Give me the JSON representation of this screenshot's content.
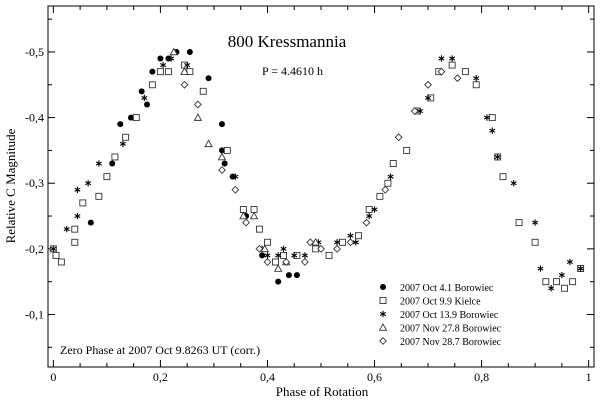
{
  "chart_data": {
    "type": "scatter",
    "title": "800 Kressmannia",
    "period_label": "P = 4.4610 h",
    "xlabel": "Phase of Rotation",
    "ylabel": "Relative C Magnitude",
    "xlim": [
      -0.01,
      1.01
    ],
    "ylim": [
      -0.57,
      -0.02
    ],
    "y_reversed": true,
    "x_ticks": [
      0,
      0.2,
      0.4,
      0.6,
      0.8,
      1
    ],
    "x_tick_labels": [
      "0",
      "0,2",
      "0,4",
      "0,6",
      "0,8",
      "1"
    ],
    "y_ticks": [
      -0.1,
      -0.2,
      -0.3,
      -0.4,
      -0.5
    ],
    "y_tick_labels": [
      "-0,1",
      "-0,2",
      "-0,3",
      "-0,4",
      "-0,5"
    ],
    "annotation": "Zero Phase at 2007 Oct 9.8263 UT (corr.)",
    "legend_position": "bottom-right",
    "series": [
      {
        "name": "2007 Oct 4.1 Borowiec",
        "marker": "filled-circle",
        "points": [
          [
            0.07,
            -0.24
          ],
          [
            0.1,
            -0.31
          ],
          [
            0.11,
            -0.33
          ],
          [
            0.125,
            -0.39
          ],
          [
            0.145,
            -0.4
          ],
          [
            0.165,
            -0.44
          ],
          [
            0.175,
            -0.42
          ],
          [
            0.185,
            -0.47
          ],
          [
            0.2,
            -0.49
          ],
          [
            0.215,
            -0.49
          ],
          [
            0.23,
            -0.5
          ],
          [
            0.255,
            -0.5
          ],
          [
            0.29,
            -0.46
          ],
          [
            0.315,
            -0.39
          ],
          [
            0.315,
            -0.35
          ],
          [
            0.32,
            -0.33
          ],
          [
            0.335,
            -0.31
          ],
          [
            0.36,
            -0.25
          ],
          [
            0.39,
            -0.19
          ],
          [
            0.42,
            -0.15
          ],
          [
            0.44,
            -0.16
          ],
          [
            0.455,
            -0.16
          ]
        ]
      },
      {
        "name": "2007 Oct 9.9 Kielce",
        "marker": "open-square",
        "points": [
          [
            0.0,
            -0.2
          ],
          [
            0.005,
            -0.19
          ],
          [
            0.015,
            -0.18
          ],
          [
            0.04,
            -0.21
          ],
          [
            0.04,
            -0.23
          ],
          [
            0.055,
            -0.27
          ],
          [
            0.085,
            -0.28
          ],
          [
            0.1,
            -0.31
          ],
          [
            0.115,
            -0.34
          ],
          [
            0.135,
            -0.37
          ],
          [
            0.155,
            -0.4
          ],
          [
            0.185,
            -0.45
          ],
          [
            0.2,
            -0.47
          ],
          [
            0.215,
            -0.47
          ],
          [
            0.245,
            -0.48
          ],
          [
            0.255,
            -0.47
          ],
          [
            0.28,
            -0.44
          ],
          [
            0.325,
            -0.35
          ],
          [
            0.355,
            -0.26
          ],
          [
            0.375,
            -0.26
          ],
          [
            0.385,
            -0.23
          ],
          [
            0.4,
            -0.21
          ],
          [
            0.415,
            -0.18
          ],
          [
            0.43,
            -0.19
          ],
          [
            0.455,
            -0.19
          ],
          [
            0.49,
            -0.2
          ],
          [
            0.515,
            -0.19
          ],
          [
            0.54,
            -0.21
          ],
          [
            0.57,
            -0.22
          ],
          [
            0.59,
            -0.26
          ],
          [
            0.61,
            -0.28
          ],
          [
            0.625,
            -0.3
          ],
          [
            0.635,
            -0.33
          ],
          [
            0.66,
            -0.35
          ],
          [
            0.68,
            -0.41
          ],
          [
            0.705,
            -0.43
          ],
          [
            0.72,
            -0.47
          ],
          [
            0.745,
            -0.48
          ],
          [
            0.77,
            -0.47
          ],
          [
            0.79,
            -0.45
          ],
          [
            0.82,
            -0.4
          ],
          [
            0.83,
            -0.34
          ],
          [
            0.84,
            -0.31
          ],
          [
            0.87,
            -0.24
          ],
          [
            0.9,
            -0.21
          ],
          [
            0.92,
            -0.15
          ],
          [
            0.94,
            -0.15
          ],
          [
            0.955,
            -0.14
          ],
          [
            0.97,
            -0.15
          ],
          [
            0.985,
            -0.17
          ]
        ]
      },
      {
        "name": "2007 Oct 13.9 Borowiec",
        "marker": "asterisk",
        "points": [
          [
            0.0,
            -0.2
          ],
          [
            0.025,
            -0.23
          ],
          [
            0.045,
            -0.25
          ],
          [
            0.045,
            -0.29
          ],
          [
            0.065,
            -0.3
          ],
          [
            0.085,
            -0.33
          ],
          [
            0.13,
            -0.36
          ],
          [
            0.17,
            -0.43
          ],
          [
            0.205,
            -0.48
          ],
          [
            0.22,
            -0.49
          ],
          [
            0.25,
            -0.48
          ],
          [
            0.34,
            -0.31
          ],
          [
            0.39,
            -0.2
          ],
          [
            0.4,
            -0.19
          ],
          [
            0.42,
            -0.19
          ],
          [
            0.43,
            -0.2
          ],
          [
            0.45,
            -0.19
          ],
          [
            0.47,
            -0.19
          ],
          [
            0.495,
            -0.21
          ],
          [
            0.53,
            -0.21
          ],
          [
            0.555,
            -0.22
          ],
          [
            0.565,
            -0.21
          ],
          [
            0.59,
            -0.25
          ],
          [
            0.6,
            -0.26
          ],
          [
            0.63,
            -0.31
          ],
          [
            0.685,
            -0.41
          ],
          [
            0.7,
            -0.43
          ],
          [
            0.725,
            -0.49
          ],
          [
            0.745,
            -0.49
          ],
          [
            0.79,
            -0.46
          ],
          [
            0.81,
            -0.4
          ],
          [
            0.82,
            -0.38
          ],
          [
            0.83,
            -0.34
          ],
          [
            0.86,
            -0.3
          ],
          [
            0.9,
            -0.24
          ],
          [
            0.91,
            -0.17
          ],
          [
            0.93,
            -0.14
          ],
          [
            0.95,
            -0.16
          ],
          [
            0.965,
            -0.18
          ],
          [
            0.985,
            -0.17
          ]
        ]
      },
      {
        "name": "2007 Nov 27.8 Borowiec",
        "marker": "open-triangle",
        "points": [
          [
            0.225,
            -0.5
          ],
          [
            0.245,
            -0.47
          ],
          [
            0.27,
            -0.4
          ],
          [
            0.29,
            -0.36
          ],
          [
            0.315,
            -0.34
          ],
          [
            0.355,
            -0.25
          ],
          [
            0.375,
            -0.25
          ],
          [
            0.395,
            -0.2
          ],
          [
            0.42,
            -0.17
          ],
          [
            0.435,
            -0.18
          ],
          [
            0.49,
            -0.21
          ]
        ]
      },
      {
        "name": "2007 Nov 28.7 Borowiec",
        "marker": "open-diamond",
        "points": [
          [
            0.245,
            -0.45
          ],
          [
            0.27,
            -0.42
          ],
          [
            0.315,
            -0.32
          ],
          [
            0.34,
            -0.29
          ],
          [
            0.36,
            -0.24
          ],
          [
            0.385,
            -0.2
          ],
          [
            0.4,
            -0.18
          ],
          [
            0.435,
            -0.18
          ],
          [
            0.47,
            -0.18
          ],
          [
            0.48,
            -0.21
          ],
          [
            0.5,
            -0.2
          ],
          [
            0.53,
            -0.2
          ],
          [
            0.555,
            -0.21
          ],
          [
            0.585,
            -0.24
          ],
          [
            0.62,
            -0.29
          ],
          [
            0.645,
            -0.37
          ],
          [
            0.675,
            -0.41
          ],
          [
            0.7,
            -0.45
          ],
          [
            0.725,
            -0.47
          ],
          [
            0.755,
            -0.46
          ]
        ]
      }
    ]
  }
}
